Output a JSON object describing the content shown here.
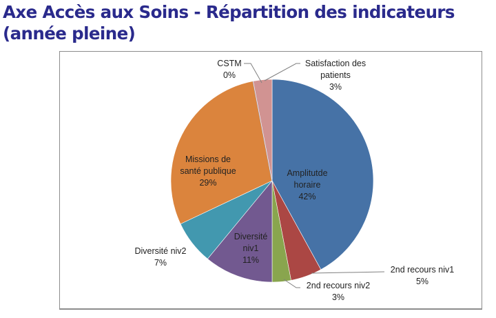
{
  "title": "Axe Accès aux Soins - Répartition des indicateurs (année pleine)",
  "chart_data": {
    "type": "pie",
    "title": "Axe Accès aux Soins - Répartition des indicateurs (année pleine)",
    "start": "top, clockwise",
    "slices": [
      {
        "name": "Amplitutde horaire",
        "line1": "Amplitutde",
        "line2": "horaire",
        "value": 42,
        "pct": "42%",
        "color": "#4672a6"
      },
      {
        "name": "2nd recours niv1",
        "line1": "2nd recours niv1",
        "line2": "",
        "value": 5,
        "pct": "5%",
        "color": "#ab4744"
      },
      {
        "name": "2nd recours niv2",
        "line1": "2nd recours niv2",
        "line2": "",
        "value": 3,
        "pct": "3%",
        "color": "#89a54e"
      },
      {
        "name": "Diversité niv1",
        "line1": "Diversité",
        "line2": "niv1",
        "value": 11,
        "pct": "11%",
        "color": "#725990"
      },
      {
        "name": "Diversité niv2",
        "line1": "Diversité niv2",
        "line2": "",
        "value": 7,
        "pct": "7%",
        "color": "#4298af"
      },
      {
        "name": "Missions de santé publique",
        "line1": "Missions de",
        "line2": "santé publique",
        "value": 29,
        "pct": "29%",
        "color": "#db843d"
      },
      {
        "name": "CSTM",
        "line1": "CSTM",
        "line2": "",
        "value": 0,
        "pct": "0%",
        "color": "#93a9cf"
      },
      {
        "name": "Satisfaction des patients",
        "line1": "Satisfaction des",
        "line2": "patients",
        "value": 3,
        "pct": "3%",
        "color": "#d19392"
      }
    ]
  }
}
